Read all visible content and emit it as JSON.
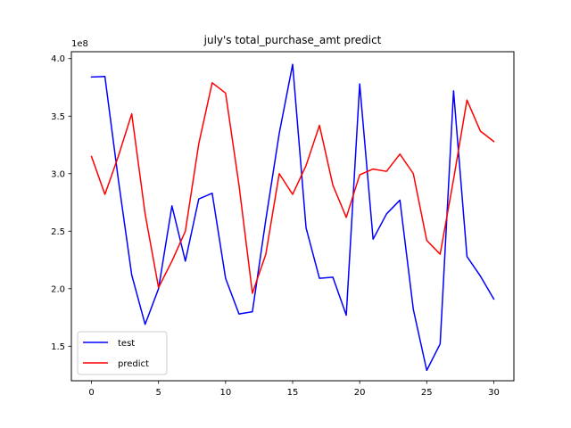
{
  "chart_data": {
    "type": "line",
    "title": "july's total_purchase_amt predict",
    "xlabel": "",
    "ylabel": "",
    "y_offset_label": "1e8",
    "xlim": [
      -1.5,
      31.5
    ],
    "ylim": [
      1.2,
      4.06
    ],
    "x_ticks": [
      0,
      5,
      10,
      15,
      20,
      25,
      30
    ],
    "x_tick_labels": [
      "0",
      "5",
      "10",
      "15",
      "20",
      "25",
      "30"
    ],
    "y_ticks": [
      1.5,
      2.0,
      2.5,
      3.0,
      3.5,
      4.0
    ],
    "y_tick_labels": [
      "1.5",
      "2.0",
      "2.5",
      "3.0",
      "3.5",
      "4.0"
    ],
    "grid": false,
    "legend_position": "lower left",
    "x": [
      0,
      1,
      2,
      3,
      4,
      5,
      6,
      7,
      8,
      9,
      10,
      11,
      12,
      13,
      14,
      15,
      16,
      17,
      18,
      19,
      20,
      21,
      22,
      23,
      24,
      25,
      26,
      27,
      28,
      29,
      30
    ],
    "series": [
      {
        "name": "test",
        "color": "#0000ff",
        "values": [
          3.84,
          3.845,
          2.95,
          2.12,
          1.69,
          2.0,
          2.72,
          2.24,
          2.78,
          2.83,
          2.09,
          1.78,
          1.8,
          2.6,
          3.35,
          3.95,
          2.53,
          2.09,
          2.1,
          1.77,
          3.78,
          2.43,
          2.65,
          2.77,
          1.82,
          1.29,
          1.52,
          3.72,
          2.28,
          2.11,
          1.91
        ]
      },
      {
        "name": "predict",
        "color": "#ff0000",
        "values": [
          3.15,
          2.82,
          3.15,
          3.52,
          2.65,
          2.01,
          2.24,
          2.5,
          3.26,
          3.79,
          3.7,
          2.9,
          1.96,
          2.3,
          3.0,
          2.82,
          3.07,
          3.42,
          2.9,
          2.62,
          2.99,
          3.04,
          3.02,
          3.17,
          3.0,
          2.42,
          2.3,
          2.95,
          3.64,
          3.37,
          3.28
        ]
      }
    ]
  }
}
